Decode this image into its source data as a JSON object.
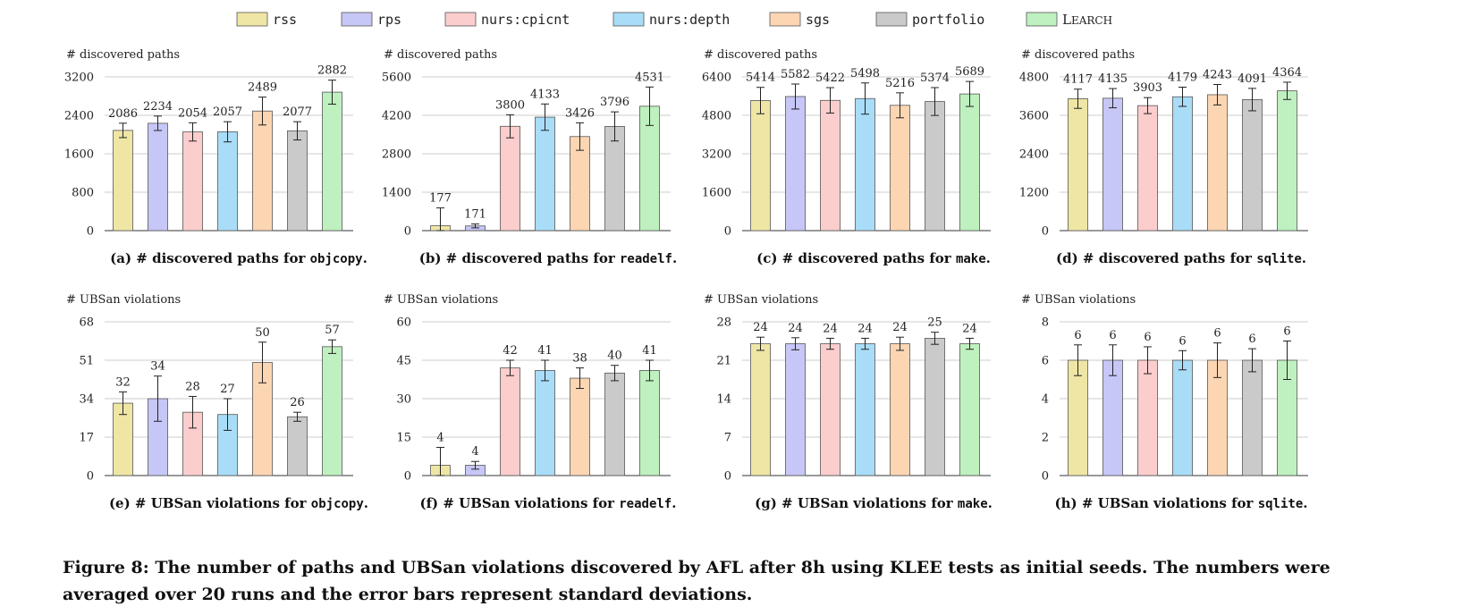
{
  "figure": {
    "caption": "Figure 8: The number of paths and UBSan violations discovered by AFL after 8h using KLEE tests as initial seeds. The numbers were averaged over 20 runs and the error bars represent standard deviations.",
    "series_colors": {
      "rss": "#efe6a6",
      "rps": "#c6c6f7",
      "nurs:cpicnt": "#fccdcd",
      "nurs:depth": "#a9dcf7",
      "sgs": "#fcd6b3",
      "portfolio": "#cacaca",
      "LEARCH": "#bff0bf"
    }
  },
  "chart_data": [
    {
      "type": "bar",
      "panel": "a",
      "title": "(a) # discovered paths for objcopy.",
      "caption_prefix": "(a) # discovered paths for ",
      "caption_code": "objcopy",
      "caption_suffix": ".",
      "ylabel": "# discovered paths",
      "categories": [
        "rss",
        "rps",
        "nurs:cpicnt",
        "nurs:depth",
        "sgs",
        "portfolio",
        "LEARCH"
      ],
      "values": [
        2086,
        2234,
        2054,
        2057,
        2489,
        2077,
        2882
      ],
      "errors": [
        150,
        150,
        190,
        210,
        290,
        190,
        250
      ],
      "ylim": [
        0,
        3200
      ],
      "yticks": [
        0,
        800,
        1600,
        2400,
        3200
      ],
      "grid": true
    },
    {
      "type": "bar",
      "panel": "b",
      "title": "(b) # discovered paths for readelf.",
      "caption_prefix": "(b) # discovered paths for ",
      "caption_code": "readelf",
      "caption_suffix": ".",
      "ylabel": "# discovered paths",
      "categories": [
        "rss",
        "rps",
        "nurs:cpicnt",
        "nurs:depth",
        "sgs",
        "portfolio",
        "LEARCH"
      ],
      "values": [
        177,
        171,
        3800,
        4133,
        3426,
        3796,
        4531
      ],
      "errors": [
        650,
        70,
        420,
        480,
        500,
        530,
        700
      ],
      "ylim": [
        0,
        5600
      ],
      "yticks": [
        0,
        1400,
        2800,
        4200,
        5600
      ],
      "grid": true
    },
    {
      "type": "bar",
      "panel": "c",
      "title": "(c) # discovered paths for make.",
      "caption_prefix": "(c) # discovered paths for ",
      "caption_code": "make",
      "caption_suffix": ".",
      "ylabel": "# discovered paths",
      "categories": [
        "rss",
        "rps",
        "nurs:cpicnt",
        "nurs:depth",
        "sgs",
        "portfolio",
        "LEARCH"
      ],
      "values": [
        5414,
        5582,
        5422,
        5498,
        5216,
        5374,
        5689
      ],
      "errors": [
        550,
        520,
        530,
        650,
        520,
        580,
        520
      ],
      "ylim": [
        0,
        6400
      ],
      "yticks": [
        0,
        1600,
        3200,
        4800,
        6400
      ],
      "grid": true
    },
    {
      "type": "bar",
      "panel": "d",
      "title": "(d) # discovered paths for sqlite.",
      "caption_prefix": "(d) # discovered paths for ",
      "caption_code": "sqlite",
      "caption_suffix": ".",
      "ylabel": "# discovered paths",
      "categories": [
        "rss",
        "rps",
        "nurs:cpicnt",
        "nurs:depth",
        "sgs",
        "portfolio",
        "LEARCH"
      ],
      "values": [
        4117,
        4135,
        3903,
        4179,
        4243,
        4091,
        4364
      ],
      "errors": [
        300,
        300,
        250,
        300,
        320,
        350,
        270
      ],
      "ylim": [
        0,
        4800
      ],
      "yticks": [
        0,
        1200,
        2400,
        3600,
        4800
      ],
      "grid": true
    },
    {
      "type": "bar",
      "panel": "e",
      "title": "(e) # UBSan violations for objcopy.",
      "caption_prefix": "(e) # UBSan violations for ",
      "caption_code": "objcopy",
      "caption_suffix": ".",
      "ylabel": "# UBSan violations",
      "categories": [
        "rss",
        "rps",
        "nurs:cpicnt",
        "nurs:depth",
        "sgs",
        "portfolio",
        "LEARCH"
      ],
      "values": [
        32,
        34,
        28,
        27,
        50,
        26,
        57
      ],
      "errors": [
        5,
        10,
        7,
        7,
        9,
        2,
        3
      ],
      "ylim": [
        0,
        68
      ],
      "yticks": [
        0,
        17,
        34,
        51,
        68
      ],
      "grid": true
    },
    {
      "type": "bar",
      "panel": "f",
      "title": "(f) # UBSan violations for readelf.",
      "caption_prefix": "(f) # UBSan violations for ",
      "caption_code": "readelf",
      "caption_suffix": ".",
      "ylabel": "# UBSan violations",
      "categories": [
        "rss",
        "rps",
        "nurs:cpicnt",
        "nurs:depth",
        "sgs",
        "portfolio",
        "LEARCH"
      ],
      "values": [
        4,
        4,
        42,
        41,
        38,
        40,
        41
      ],
      "errors": [
        7,
        1.5,
        3,
        4,
        4,
        3,
        4
      ],
      "ylim": [
        0,
        60
      ],
      "yticks": [
        0,
        15,
        30,
        45,
        60
      ],
      "grid": true
    },
    {
      "type": "bar",
      "panel": "g",
      "title": "(g) # UBSan violations for make.",
      "caption_prefix": "(g) # UBSan violations for ",
      "caption_code": "make",
      "caption_suffix": ".",
      "ylabel": "# UBSan violations",
      "categories": [
        "rss",
        "rps",
        "nurs:cpicnt",
        "nurs:depth",
        "sgs",
        "portfolio",
        "LEARCH"
      ],
      "values": [
        24,
        24,
        24,
        24,
        24,
        25,
        24
      ],
      "errors": [
        1.2,
        1.1,
        1,
        1,
        1.2,
        1.1,
        1
      ],
      "ylim": [
        0,
        28
      ],
      "yticks": [
        0,
        7,
        14,
        21,
        28
      ],
      "grid": true
    },
    {
      "type": "bar",
      "panel": "h",
      "title": "(h) # UBSan violations for sqlite.",
      "caption_prefix": "(h) # UBSan violations for ",
      "caption_code": "sqlite",
      "caption_suffix": ".",
      "ylabel": "# UBSan violations",
      "categories": [
        "rss",
        "rps",
        "nurs:cpicnt",
        "nurs:depth",
        "sgs",
        "portfolio",
        "LEARCH"
      ],
      "values": [
        6,
        6,
        6,
        6,
        6,
        6,
        6
      ],
      "errors": [
        0.8,
        0.8,
        0.7,
        0.5,
        0.9,
        0.6,
        1
      ],
      "ylim": [
        0,
        8
      ],
      "yticks": [
        0,
        2,
        4,
        6,
        8
      ],
      "grid": true
    }
  ]
}
